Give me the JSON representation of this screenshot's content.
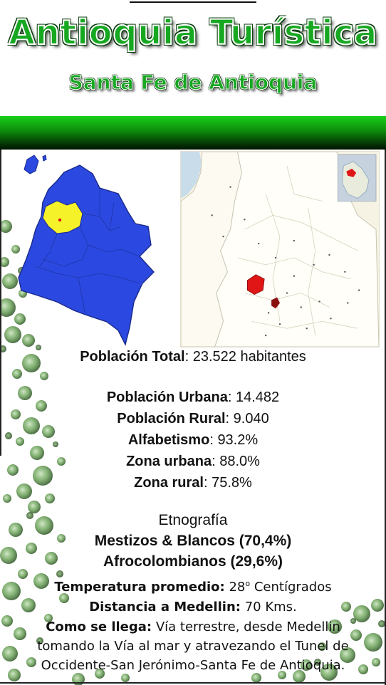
{
  "header": {
    "title": "Antioquia Turística",
    "subtitle": "Santa Fe de Antioquia"
  },
  "maps": {
    "colombia_icon": "colombia-map-icon",
    "antioquia_icon": "antioquia-map-icon",
    "colors": {
      "country_fill": "#2b49e0",
      "highlight_fill": "#f6f22a",
      "municipality_fill": "#e01616",
      "inset_fill": "#8aa4c6"
    }
  },
  "stats": {
    "poblacion_total_label": "Población Total",
    "poblacion_total_value": "23.522 habitantes",
    "poblacion_urbana_label": "Población Urbana",
    "poblacion_urbana_value": "14.482",
    "poblacion_rural_label": "Población Rural",
    "poblacion_rural_value": "9.040",
    "alfabetismo_label": "Alfabetismo",
    "alfabetismo_value": "93.2%",
    "zona_urbana_label": "Zona urbana",
    "zona_urbana_value": "88.0%",
    "zona_rural_label": "Zona rural",
    "zona_rural_value": "75.8%"
  },
  "etnografia": {
    "heading": "Etnografía",
    "line1": "Mestizos & Blancos (70,4%)",
    "line2": "Afrocolombianos (29,6%)"
  },
  "info": {
    "temperatura_label": "Temperatura promedio:",
    "temperatura_value": "28",
    "temperatura_unit_sup": "o",
    "temperatura_unit": "Centígrados",
    "distancia_label": "Distancia a Medellin:",
    "distancia_value": "70 Kms.",
    "como_label": "Como se llega:",
    "como_line1": "Vía terrestre, desde Medellin",
    "como_line2": "tomando la Vía al mar y atravezando el Tunel de",
    "como_line3": "Occidente-San Jerónimo-Santa Fe de Antioquia."
  },
  "decoration": {
    "bubble_color": "#3c7a2e",
    "bar_color": "#0c8a0c"
  }
}
